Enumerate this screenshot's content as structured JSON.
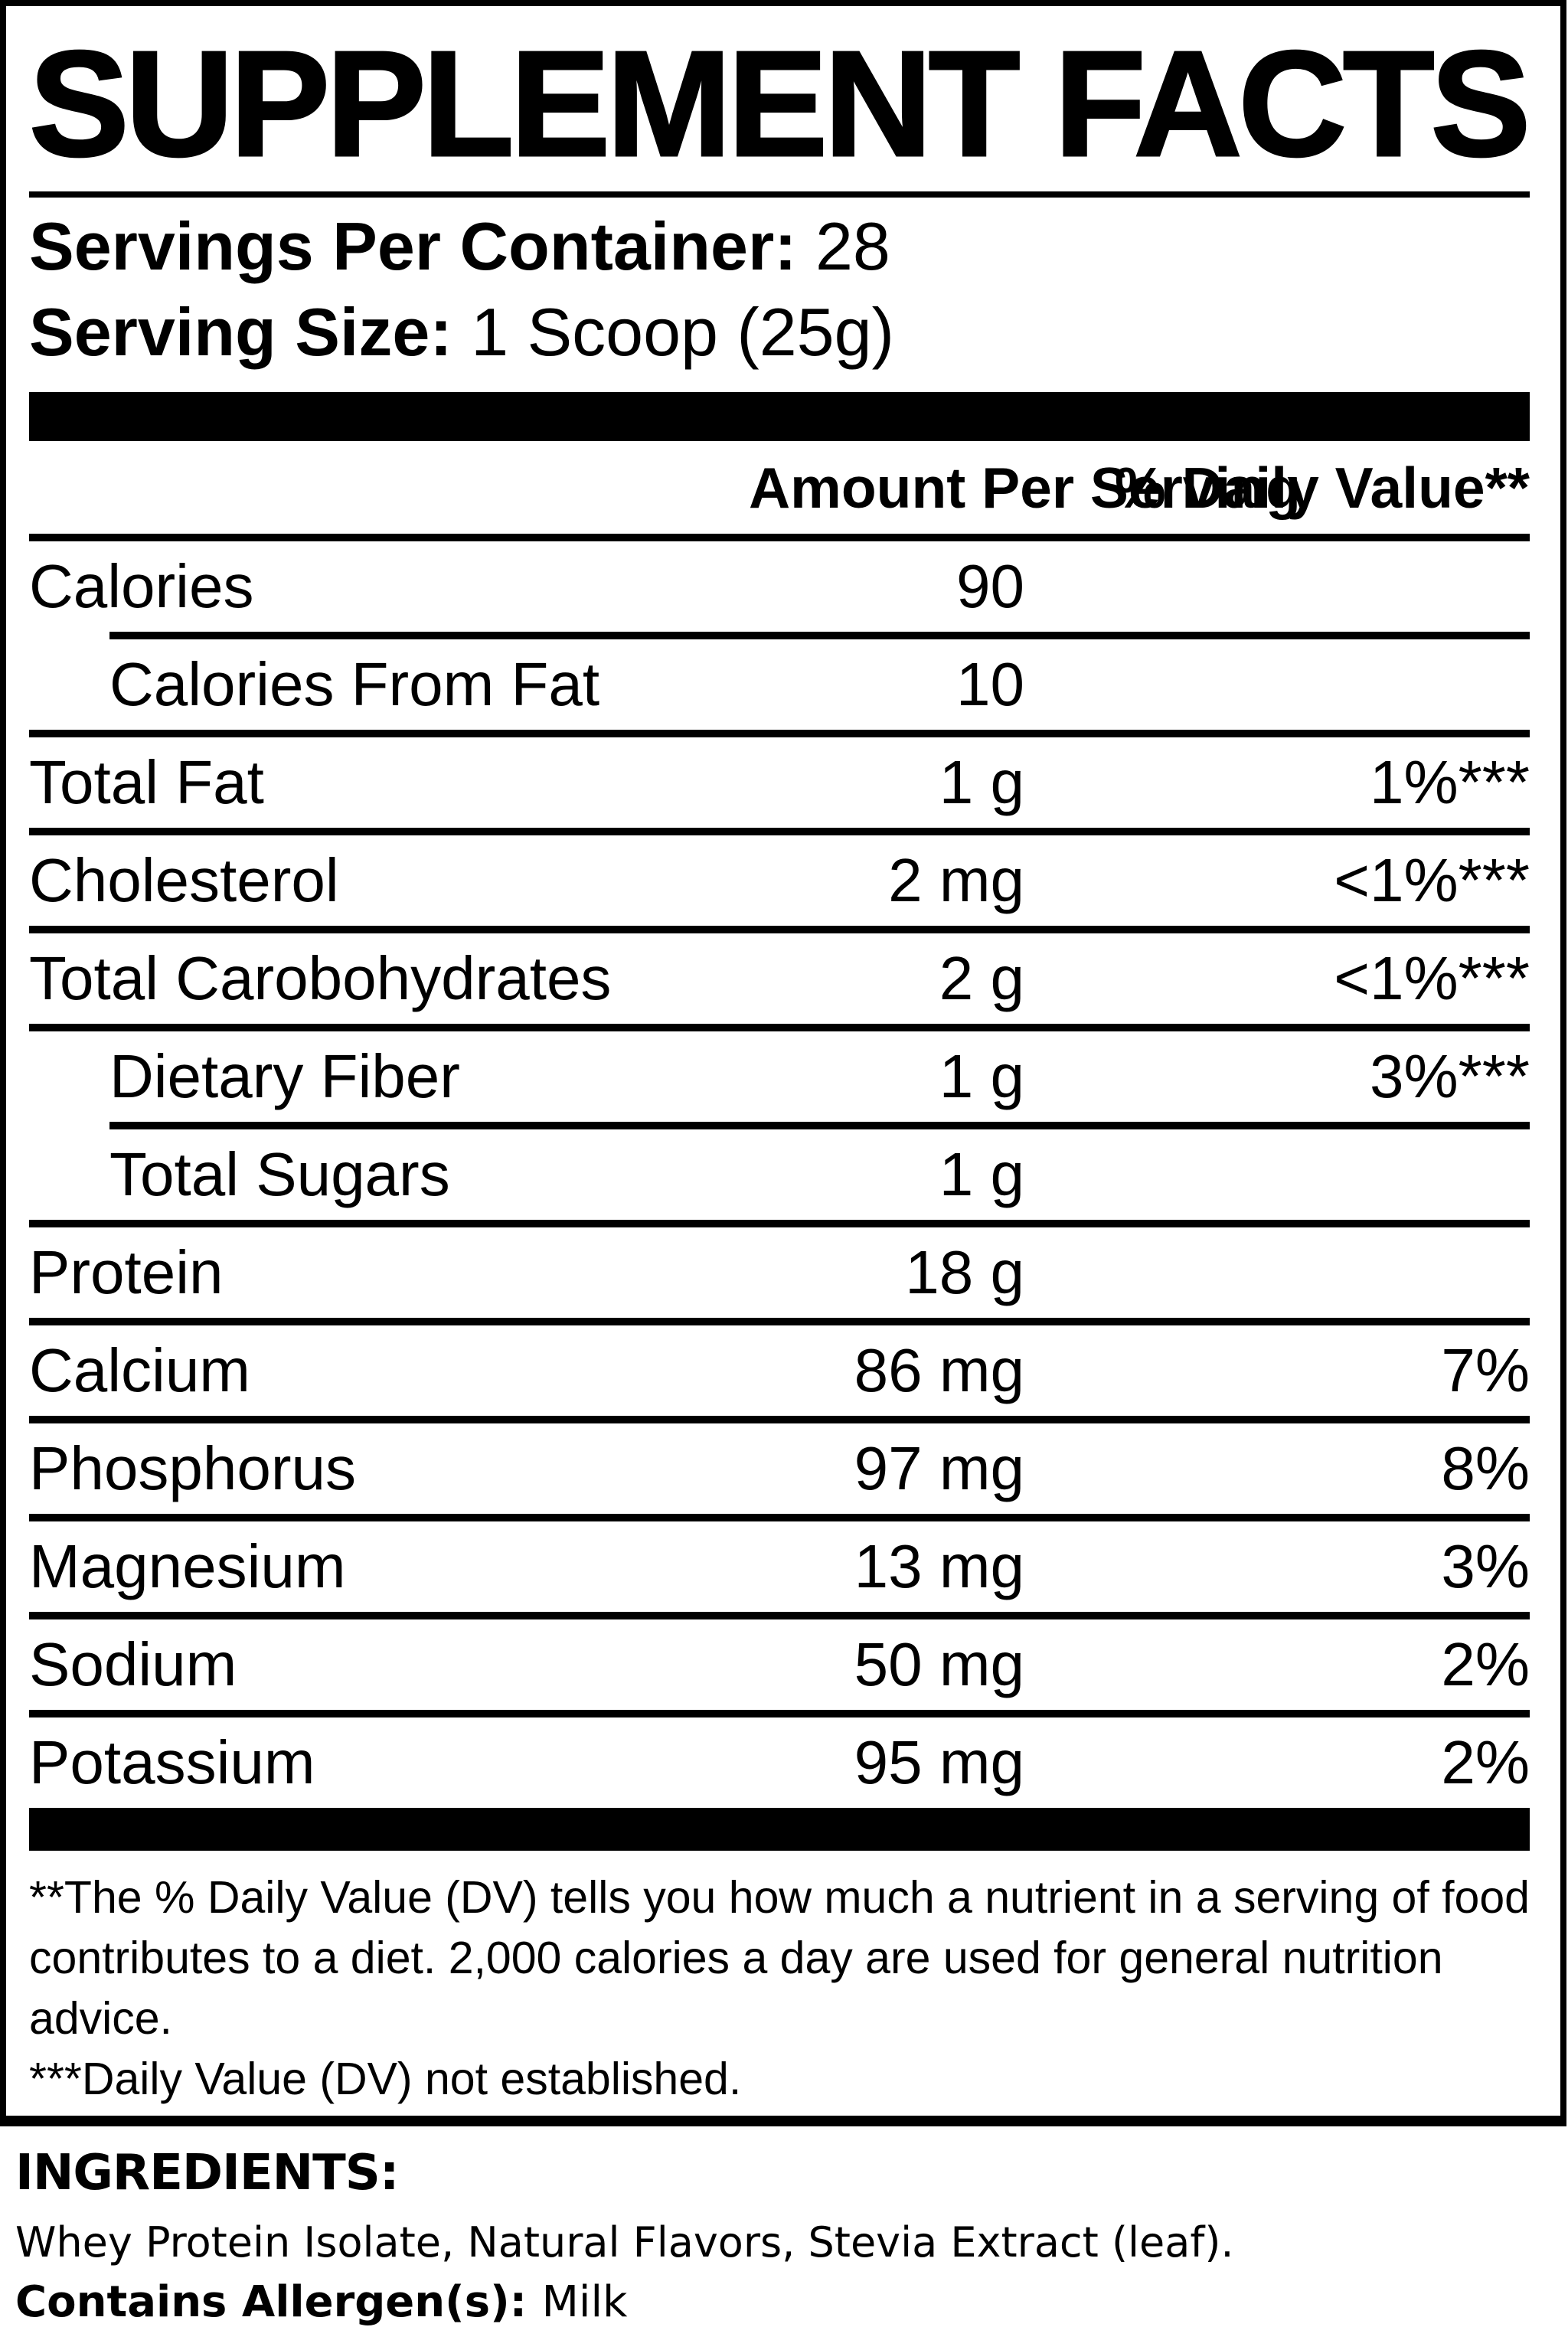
{
  "colors": {
    "ink": "#000000",
    "paper": "#ffffff"
  },
  "title": "SUPPLEMENT FACTS",
  "serving_info": {
    "servings_label": "Servings Per Container:",
    "servings_value": " 28",
    "size_label": "Serving Size:",
    "size_value": " 1 Scoop (25g)"
  },
  "table": {
    "amount_header": "Amount Per Serving",
    "dv_header": "% Daily Value**",
    "rows": [
      {
        "label": "Calories",
        "amount": "90",
        "dv": ""
      },
      {
        "label": "Calories From Fat",
        "amount": "10",
        "dv": ""
      },
      {
        "label": "Total Fat",
        "amount": "1 g",
        "dv": "1%***"
      },
      {
        "label": "Cholesterol",
        "amount": "2 mg",
        "dv": "<1%***"
      },
      {
        "label": "Total Carobohydrates",
        "amount": "2 g",
        "dv": "<1%***"
      },
      {
        "label": "Dietary Fiber",
        "amount": "1 g",
        "dv": "3%***"
      },
      {
        "label": "Total Sugars",
        "amount": "1 g",
        "dv": ""
      },
      {
        "label": "Protein",
        "amount": "18 g",
        "dv": ""
      },
      {
        "label": "Calcium",
        "amount": "86 mg",
        "dv": "7%"
      },
      {
        "label": "Phosphorus",
        "amount": "97 mg",
        "dv": "8%"
      },
      {
        "label": "Magnesium",
        "amount": "13 mg",
        "dv": "3%"
      },
      {
        "label": "Sodium",
        "amount": "50 mg",
        "dv": "2%"
      },
      {
        "label": "Potassium",
        "amount": "95 mg",
        "dv": "2%"
      }
    ]
  },
  "footnotes": {
    "dv_note": "**The % Daily Value (DV) tells you how much a nutrient in a serving of food contributes to a diet. 2,000 calories a day are used for general nutrition advice.",
    "not_established_note": "***Daily Value (DV) not established."
  },
  "ingredients": {
    "heading": "INGREDIENTS:",
    "list": "Whey Protein Isolate, Natural Flavors, Stevia Extract (leaf).",
    "allergen_label": "Contains Allergen(s): ",
    "allergen_value": "Milk"
  }
}
